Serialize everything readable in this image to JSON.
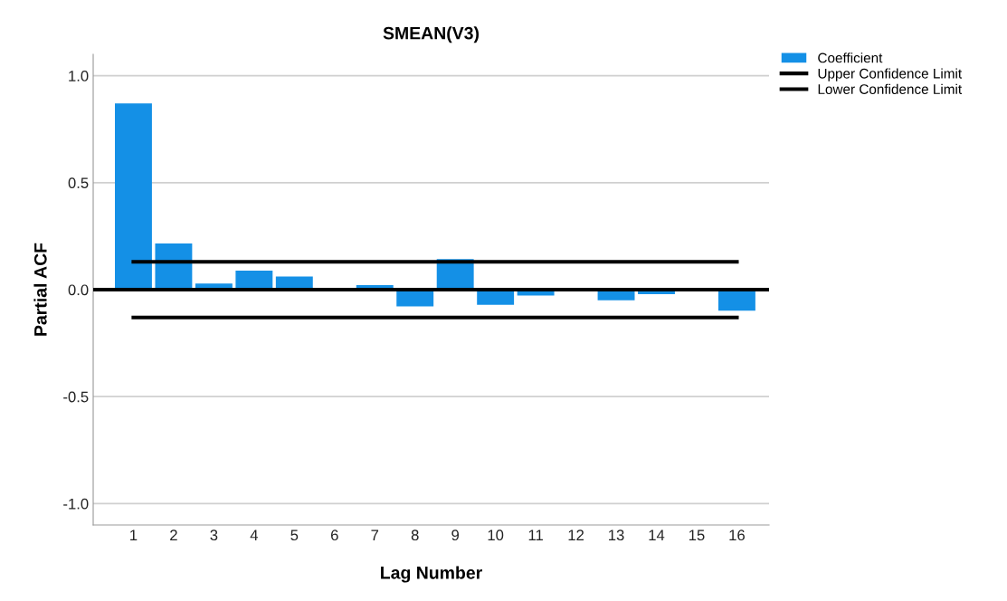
{
  "chart_data": {
    "type": "bar",
    "title": "SMEAN(V3)",
    "xlabel": "Lag Number",
    "ylabel": "Partial ACF",
    "categories": [
      "1",
      "2",
      "3",
      "4",
      "5",
      "6",
      "7",
      "8",
      "9",
      "10",
      "11",
      "12",
      "13",
      "14",
      "15",
      "16"
    ],
    "series": [
      {
        "name": "Coefficient",
        "color": "#1490e6",
        "values": [
          0.871,
          0.216,
          0.029,
          0.089,
          0.061,
          0.0,
          0.021,
          -0.078,
          0.143,
          -0.071,
          -0.028,
          0.0,
          -0.05,
          -0.021,
          null,
          -0.098
        ]
      },
      {
        "name": "Upper Confidence Limit",
        "type": "line",
        "color": "#000000",
        "values": [
          0.13,
          0.13,
          0.13,
          0.13,
          0.13,
          0.13,
          0.13,
          0.13,
          0.13,
          0.13,
          0.13,
          0.13,
          0.13,
          0.13,
          0.13,
          0.13
        ]
      },
      {
        "name": "Lower Confidence Limit",
        "type": "line",
        "color": "#000000",
        "values": [
          -0.13,
          -0.13,
          -0.13,
          -0.13,
          -0.13,
          -0.13,
          -0.13,
          -0.13,
          -0.13,
          -0.13,
          -0.13,
          -0.13,
          -0.13,
          -0.13,
          -0.13,
          -0.13
        ]
      }
    ],
    "ylim": [
      -1.1,
      1.1
    ],
    "yticks": [
      {
        "value": -1,
        "label": "-1.0"
      },
      {
        "value": -0.5,
        "label": "-0.5"
      },
      {
        "value": 0,
        "label": "0.0"
      },
      {
        "value": 0.5,
        "label": "0.5"
      },
      {
        "value": 1,
        "label": "1.0"
      }
    ],
    "ref_lines": [
      {
        "axis": "y",
        "value": 0,
        "label": null,
        "color": "#000000"
      }
    ],
    "grid": "y",
    "legend": "top right",
    "marker": "none",
    "line_style": "solid"
  }
}
